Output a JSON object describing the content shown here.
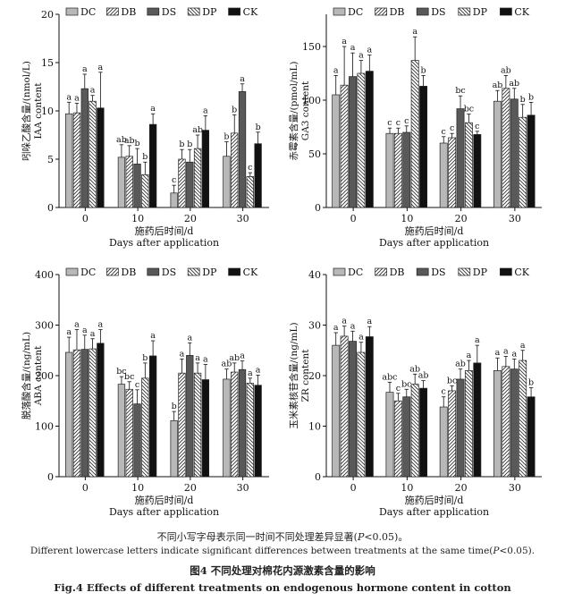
{
  "chart_data": [
    {
      "type": "bar",
      "ylabel_cn": "吲哚乙酸含量/(nmol/L)",
      "ylabel_en": "IAA content",
      "xlabel_cn": "施药后时间/d",
      "xlabel_en": "Days after application",
      "ylim": [
        0,
        20
      ],
      "yticks": [
        "0",
        "5",
        "10",
        "15",
        "20"
      ],
      "categories": [
        "0",
        "10",
        "20",
        "30"
      ],
      "series": [
        {
          "name": "DC",
          "values": [
            9.7,
            5.2,
            1.5,
            5.3
          ],
          "errors": [
            1.2,
            1.3,
            0.8,
            1.5
          ],
          "letters": [
            "a",
            "ab",
            "c",
            "b"
          ]
        },
        {
          "name": "DB",
          "values": [
            9.8,
            5.3,
            5.0,
            7.7
          ],
          "errors": [
            1.0,
            1.1,
            1.0,
            1.9
          ],
          "letters": [
            "a",
            "ab",
            "b",
            "b"
          ]
        },
        {
          "name": "DS",
          "values": [
            12.3,
            4.5,
            4.7,
            12.0
          ],
          "errors": [
            1.5,
            1.6,
            1.3,
            0.8
          ],
          "letters": [
            "a",
            "b",
            "b",
            "a"
          ]
        },
        {
          "name": "DP",
          "values": [
            11.0,
            3.4,
            6.1,
            3.2
          ],
          "errors": [
            0.6,
            1.3,
            1.4,
            0.4
          ],
          "letters": [
            "a",
            "b",
            "ab",
            "c"
          ]
        },
        {
          "name": "CK",
          "values": [
            10.3,
            8.6,
            8.0,
            6.6
          ],
          "errors": [
            3.7,
            1.1,
            1.5,
            1.2
          ],
          "letters": [
            "a",
            "a",
            "a",
            "b"
          ]
        }
      ]
    },
    {
      "type": "bar",
      "ylabel_cn": "赤霉素含量/(pmol/mL)",
      "ylabel_en": "GA3 content",
      "xlabel_cn": "施药后时间/d",
      "xlabel_en": "Days after application",
      "ylim": [
        0,
        180
      ],
      "yticks": [
        "0",
        "50",
        "100",
        "150"
      ],
      "categories": [
        "0",
        "10",
        "20",
        "30"
      ],
      "series": [
        {
          "name": "DC",
          "values": [
            105,
            69,
            60,
            99
          ],
          "errors": [
            18,
            5,
            6,
            10
          ],
          "letters": [
            "a",
            "c",
            "c",
            "ab"
          ]
        },
        {
          "name": "DB",
          "values": [
            114,
            69,
            65,
            111
          ],
          "errors": [
            36,
            5,
            4,
            12
          ],
          "letters": [
            "a",
            "c",
            "c",
            "ab"
          ]
        },
        {
          "name": "DS",
          "values": [
            122,
            70,
            92,
            101
          ],
          "errors": [
            22,
            6,
            12,
            10
          ],
          "letters": [
            "a",
            "c",
            "bc",
            "ab"
          ]
        },
        {
          "name": "DP",
          "values": [
            125,
            137,
            79,
            84
          ],
          "errors": [
            12,
            22,
            8,
            12
          ],
          "letters": [
            "a",
            "a",
            "bc",
            "b"
          ]
        },
        {
          "name": "CK",
          "values": [
            127,
            113,
            68,
            86
          ],
          "errors": [
            15,
            10,
            3,
            12
          ],
          "letters": [
            "a",
            "b",
            "c",
            "b"
          ]
        }
      ]
    },
    {
      "type": "bar",
      "ylabel_cn": "脱落酸含量/(ng/mL)",
      "ylabel_en": "ABA content",
      "xlabel_cn": "施药后时间/d",
      "xlabel_en": "Days after application",
      "ylim": [
        0,
        400
      ],
      "yticks": [
        "0",
        "100",
        "200",
        "300",
        "400"
      ],
      "categories": [
        "0",
        "10",
        "20",
        "30"
      ],
      "series": [
        {
          "name": "DC",
          "values": [
            246,
            183,
            111,
            193
          ],
          "errors": [
            30,
            15,
            18,
            20
          ],
          "letters": [
            "a",
            "bc",
            "b",
            "ab"
          ]
        },
        {
          "name": "DB",
          "values": [
            251,
            173,
            205,
            207
          ],
          "errors": [
            40,
            15,
            28,
            18
          ],
          "letters": [
            "a",
            "bc",
            "a",
            "ab"
          ]
        },
        {
          "name": "DS",
          "values": [
            252,
            144,
            240,
            212
          ],
          "errors": [
            28,
            28,
            25,
            17
          ],
          "letters": [
            "a",
            "c",
            "a",
            "a"
          ]
        },
        {
          "name": "DP",
          "values": [
            253,
            195,
            205,
            185
          ],
          "errors": [
            20,
            30,
            20,
            10
          ],
          "letters": [
            "a",
            "b",
            "a",
            "a"
          ]
        },
        {
          "name": "CK",
          "values": [
            264,
            239,
            192,
            181
          ],
          "errors": [
            27,
            30,
            30,
            20
          ],
          "letters": [
            "a",
            "a",
            "a",
            "a"
          ]
        }
      ]
    },
    {
      "type": "bar",
      "ylabel_cn": "玉米素核苷含量/(ng/mL)",
      "ylabel_en": "ZR content",
      "xlabel_cn": "施药后时间/d",
      "xlabel_en": "Days after application",
      "ylim": [
        0,
        40
      ],
      "yticks": [
        "0",
        "10",
        "20",
        "30",
        "40"
      ],
      "categories": [
        "0",
        "10",
        "20",
        "30"
      ],
      "series": [
        {
          "name": "DC",
          "values": [
            26.0,
            16.7,
            13.8,
            21.0
          ],
          "errors": [
            2.5,
            2.0,
            2.0,
            2.5
          ],
          "letters": [
            "a",
            "abc",
            "c",
            "a"
          ]
        },
        {
          "name": "DB",
          "values": [
            27.8,
            15.0,
            17.0,
            21.8
          ],
          "errors": [
            2.0,
            1.5,
            1.0,
            2.0
          ],
          "letters": [
            "a",
            "c",
            "bc",
            "a"
          ]
        },
        {
          "name": "DS",
          "values": [
            26.8,
            15.8,
            19.3,
            21.3
          ],
          "errors": [
            2.0,
            1.5,
            2.0,
            2.0
          ],
          "letters": [
            "a",
            "bc",
            "ab",
            "a"
          ]
        },
        {
          "name": "DP",
          "values": [
            24.6,
            18.3,
            21.0,
            23.0
          ],
          "errors": [
            2.0,
            2.0,
            2.0,
            2.0
          ],
          "letters": [
            "a",
            "ab",
            "a",
            "a"
          ]
        },
        {
          "name": "CK",
          "values": [
            27.7,
            17.5,
            22.5,
            15.8
          ],
          "errors": [
            2.0,
            1.5,
            3.5,
            1.8
          ],
          "letters": [
            "a",
            "ab",
            "a",
            "b"
          ]
        }
      ]
    }
  ],
  "caption": {
    "cn_note_prefix": "不同小写字母表示同一时间不同处理差异显著(",
    "cn_note_p": "P",
    "cn_note_suffix": "<0.05)。",
    "en_note_prefix": "Different lowercase letters indicate significant differences between treatments at the same time(",
    "en_note_p": "P",
    "en_note_suffix": "<0.05).",
    "cn_title": "图4   不同处理对棉花内源激素含量的影响",
    "en_title": "Fig.4    Effects of different treatments on endogenous hormone content in cotton"
  }
}
